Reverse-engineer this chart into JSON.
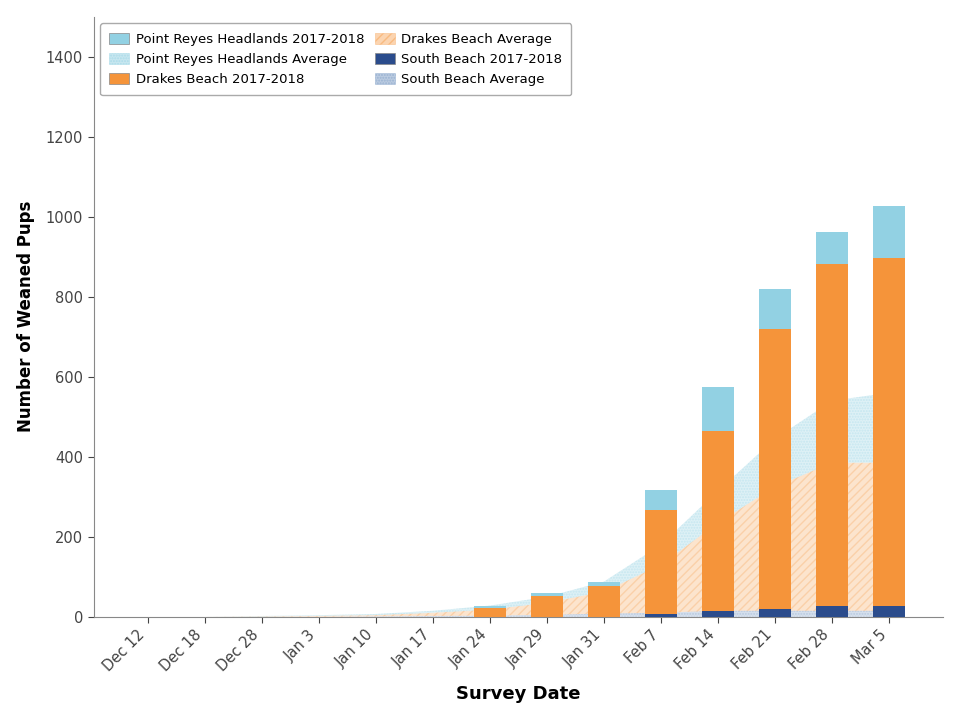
{
  "dates": [
    "Dec 12",
    "Dec 18",
    "Dec 28",
    "Jan 3",
    "Jan 10",
    "Jan 17",
    "Jan 24",
    "Jan 29",
    "Jan 31",
    "Feb 7",
    "Feb 14",
    "Feb 21",
    "Feb 28",
    "Mar 5"
  ],
  "bar_headlands": [
    0,
    0,
    0,
    0,
    0,
    0,
    5,
    8,
    10,
    50,
    110,
    100,
    80,
    130
  ],
  "bar_drakes": [
    0,
    0,
    0,
    0,
    0,
    0,
    22,
    52,
    78,
    260,
    450,
    700,
    855,
    868
  ],
  "bar_south": [
    0,
    0,
    0,
    0,
    0,
    0,
    0,
    0,
    0,
    8,
    15,
    20,
    28,
    28
  ],
  "avg_headlands": [
    0,
    0,
    1,
    2,
    3,
    5,
    10,
    15,
    25,
    50,
    80,
    120,
    155,
    175
  ],
  "avg_drakes": [
    0,
    0,
    1,
    2,
    3,
    8,
    15,
    30,
    55,
    120,
    220,
    310,
    370,
    370
  ],
  "avg_south": [
    0,
    0,
    0,
    0,
    1,
    2,
    3,
    5,
    8,
    10,
    15,
    15,
    15,
    15
  ],
  "color_headlands": "#92D1E3",
  "color_drakes": "#F5943A",
  "color_south": "#2B4C8C",
  "color_avg_headlands": "#92D1E3",
  "color_avg_drakes": "#F5943A",
  "color_avg_south": "#7A9BC4",
  "xlabel": "Survey Date",
  "ylabel": "Number of Weaned Pups",
  "ylim": [
    0,
    1500
  ],
  "yticks": [
    0,
    200,
    400,
    600,
    800,
    1000,
    1200,
    1400
  ],
  "legend_labels_bar": [
    "Point Reyes Headlands 2017-2018",
    "Drakes Beach 2017-2018",
    "South Beach 2017-2018"
  ],
  "legend_labels_avg": [
    "Point Reyes Headlands Average",
    "Drakes Beach Average",
    "South Beach Average"
  ]
}
